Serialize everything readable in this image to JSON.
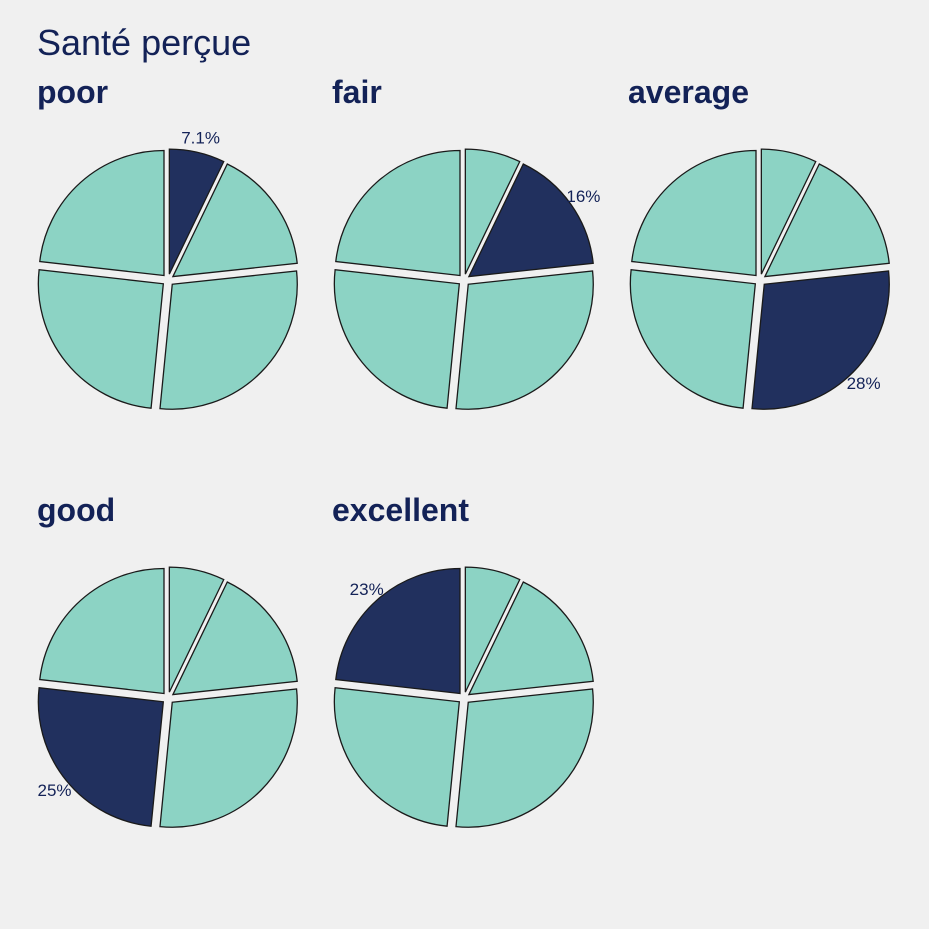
{
  "chart_data": {
    "type": "pie",
    "title": "Santé perçue",
    "categories": [
      "poor",
      "fair",
      "average",
      "good",
      "excellent"
    ],
    "values": [
      7.1,
      16,
      28,
      25,
      23
    ],
    "labels": [
      "7.1%",
      "16%",
      "28%",
      "25%",
      "23%"
    ],
    "colors": {
      "highlight": "#21305e",
      "other": "#8cd3c4",
      "stroke": "#1a1a1a"
    }
  }
}
